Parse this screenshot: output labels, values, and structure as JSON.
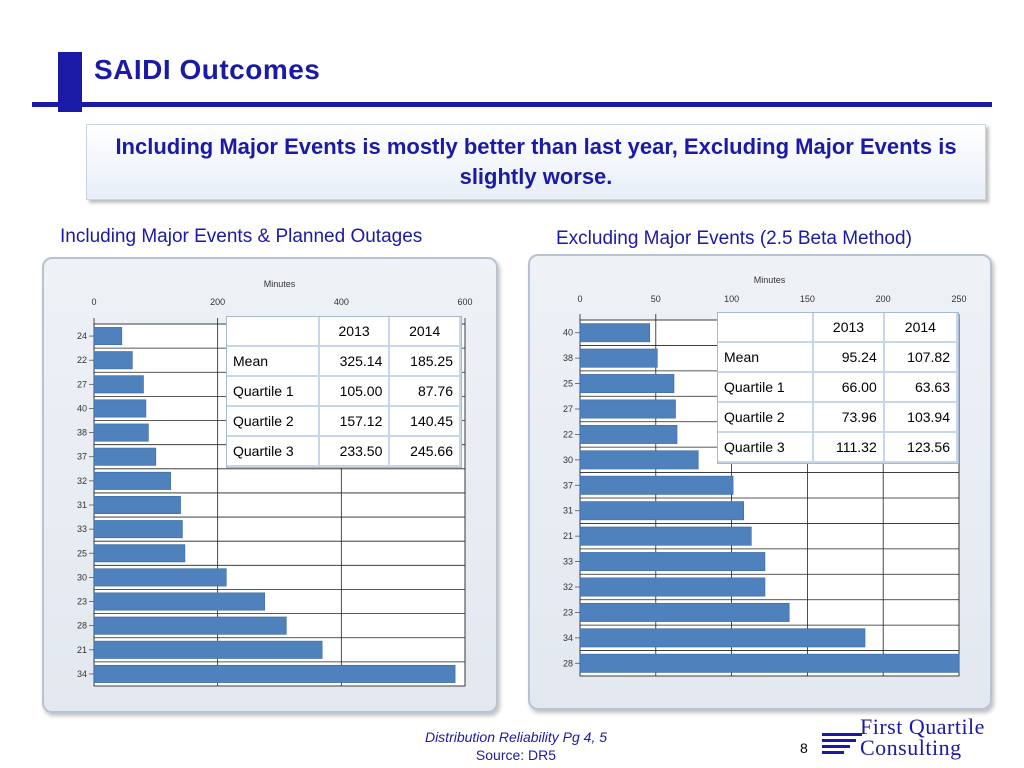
{
  "slide": {
    "title": "SAIDI Outcomes",
    "callout": "Including Major Events is mostly better than last year, Excluding Major Events is slightly worse.",
    "page_number": "8",
    "footer_line1": "Distribution Reliability Pg 4, 5",
    "footer_line2": "Source: DR5",
    "logo_line1": "First Quartile",
    "logo_line2": "Consulting",
    "accent_color": "#1a1aa6",
    "bar_color": "#4f81bd"
  },
  "charts": [
    {
      "subtitle": "Including Major Events & Planned Outages",
      "stats_table": {
        "headers": [
          "",
          "2013",
          "2014"
        ],
        "rows": [
          [
            "Mean",
            "325.14",
            "185.25"
          ],
          [
            "Quartile 1",
            "105.00",
            "87.76"
          ],
          [
            "Quartile 2",
            "157.12",
            "140.45"
          ],
          [
            "Quartile 3",
            "233.50",
            "245.66"
          ]
        ]
      }
    },
    {
      "subtitle": "Excluding Major Events (2.5 Beta Method)",
      "stats_table": {
        "headers": [
          "",
          "2013",
          "2014"
        ],
        "rows": [
          [
            "Mean",
            "95.24",
            "107.82"
          ],
          [
            "Quartile 1",
            "66.00",
            "63.63"
          ],
          [
            "Quartile 2",
            "73.96",
            "103.94"
          ],
          [
            "Quartile 3",
            "111.32",
            "123.56"
          ]
        ]
      }
    }
  ],
  "chart_data": [
    {
      "type": "bar",
      "orientation": "horizontal",
      "title": "Including Major Events & Planned Outages",
      "xlabel": "Minutes",
      "ylabel": "",
      "xlim": [
        0,
        600
      ],
      "xticks": [
        0,
        200,
        400,
        600
      ],
      "grid": true,
      "categories": [
        "24",
        "22",
        "27",
        "40",
        "38",
        "37",
        "32",
        "31",
        "33",
        "25",
        "30",
        "23",
        "28",
        "21",
        "34"
      ],
      "values": [
        45,
        62,
        80,
        84,
        88,
        100,
        124,
        140,
        143,
        147,
        214,
        276,
        311,
        369,
        584
      ]
    },
    {
      "type": "bar",
      "orientation": "horizontal",
      "title": "Excluding Major Events (2.5 Beta Method)",
      "xlabel": "Minutes",
      "ylabel": "",
      "xlim": [
        0,
        250
      ],
      "xticks": [
        0,
        50,
        100,
        150,
        200,
        250
      ],
      "grid": true,
      "categories": [
        "40",
        "38",
        "25",
        "27",
        "22",
        "30",
        "37",
        "31",
        "21",
        "33",
        "32",
        "23",
        "34",
        "28"
      ],
      "values": [
        46,
        51,
        62,
        63,
        64,
        78,
        101,
        108,
        113,
        122,
        122,
        138,
        188,
        250
      ]
    }
  ]
}
